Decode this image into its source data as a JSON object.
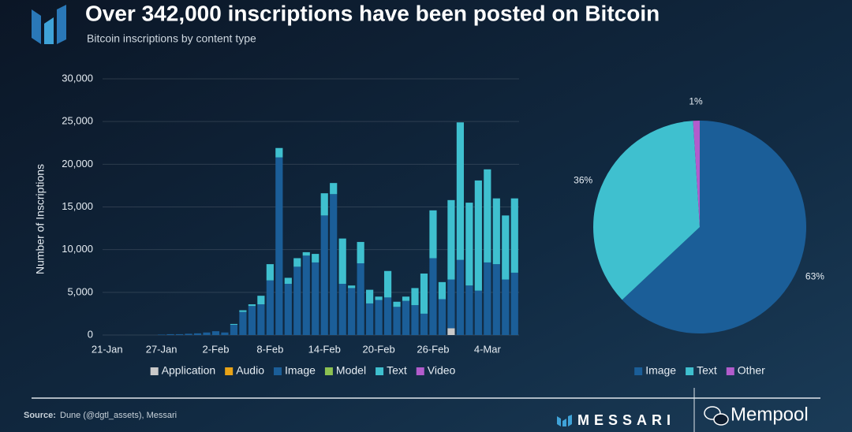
{
  "title": "Over 342,000 inscriptions have been posted on Bitcoin",
  "subtitle": "Bitcoin inscriptions by content type",
  "source_label": "Source:",
  "source": "Dune (@dgtl_assets), Messari",
  "brand": "MESSARI",
  "watermark": "Mempool",
  "chart_data": [
    {
      "type": "bar",
      "stacked": true,
      "y_label": "Number of Inscriptions",
      "categories": [
        "21-Jan",
        null,
        null,
        null,
        null,
        null,
        "27-Jan",
        null,
        null,
        null,
        null,
        null,
        "2-Feb",
        null,
        null,
        null,
        null,
        null,
        "8-Feb",
        null,
        null,
        null,
        null,
        null,
        "14-Feb",
        null,
        null,
        null,
        null,
        null,
        "20-Feb",
        null,
        null,
        null,
        null,
        null,
        "26-Feb",
        null,
        null,
        null,
        null,
        null,
        "4-Mar",
        null,
        null,
        null
      ],
      "series": [
        {
          "name": "Application",
          "color": "#c9c9c9",
          "values": [
            0,
            0,
            0,
            0,
            0,
            0,
            0,
            0,
            0,
            0,
            0,
            0,
            0,
            0,
            0,
            0,
            0,
            0,
            0,
            0,
            0,
            0,
            0,
            0,
            0,
            0,
            0,
            0,
            0,
            0,
            0,
            0,
            0,
            0,
            0,
            0,
            0,
            0,
            800,
            0,
            0,
            0,
            0,
            0,
            0,
            0
          ]
        },
        {
          "name": "Audio",
          "color": "#e8a317",
          "values": [
            0,
            0,
            0,
            0,
            0,
            0,
            0,
            0,
            0,
            0,
            0,
            0,
            0,
            0,
            0,
            0,
            0,
            0,
            0,
            0,
            0,
            0,
            0,
            0,
            0,
            0,
            0,
            0,
            0,
            0,
            0,
            0,
            0,
            0,
            0,
            0,
            0,
            0,
            0,
            0,
            0,
            0,
            0,
            0,
            0,
            0
          ]
        },
        {
          "name": "Image",
          "color": "#1b5e98",
          "values": [
            0,
            0,
            0,
            0,
            0,
            0,
            50,
            100,
            100,
            150,
            200,
            300,
            450,
            300,
            1200,
            2700,
            3400,
            3600,
            6400,
            20800,
            6000,
            8000,
            9300,
            8500,
            14000,
            16500,
            6000,
            5500,
            8400,
            3700,
            4100,
            4400,
            3300,
            4000,
            3500,
            2500,
            9000,
            4200,
            5700,
            8800,
            5800,
            5200,
            8500,
            8300,
            6500,
            7300
          ]
        },
        {
          "name": "Model",
          "color": "#8cc152",
          "values": [
            0,
            0,
            0,
            0,
            0,
            0,
            0,
            0,
            0,
            0,
            0,
            0,
            0,
            0,
            0,
            0,
            0,
            0,
            0,
            0,
            0,
            0,
            0,
            0,
            0,
            0,
            0,
            0,
            0,
            0,
            0,
            0,
            0,
            0,
            0,
            0,
            0,
            0,
            0,
            0,
            0,
            0,
            0,
            0,
            0,
            0
          ]
        },
        {
          "name": "Text",
          "color": "#3fc0cf",
          "values": [
            0,
            0,
            0,
            0,
            0,
            0,
            0,
            0,
            0,
            0,
            0,
            0,
            0,
            0,
            100,
            200,
            200,
            1000,
            1900,
            1100,
            700,
            1000,
            400,
            1000,
            2600,
            1300,
            5300,
            300,
            2500,
            1600,
            400,
            3100,
            600,
            500,
            2000,
            4700,
            5600,
            2000,
            9300,
            16100,
            9700,
            12900,
            10900,
            7700,
            7500,
            8700
          ]
        },
        {
          "name": "Video",
          "color": "#b25ccc",
          "values": [
            0,
            0,
            0,
            0,
            0,
            0,
            0,
            0,
            0,
            0,
            0,
            0,
            0,
            0,
            0,
            0,
            0,
            0,
            0,
            0,
            0,
            0,
            0,
            0,
            0,
            0,
            0,
            0,
            0,
            0,
            0,
            0,
            0,
            0,
            0,
            0,
            0,
            0,
            0,
            0,
            0,
            0,
            0,
            0,
            0,
            0
          ]
        }
      ],
      "ylim": [
        0,
        30000
      ],
      "yticks": [
        0,
        {
          "value": 5000,
          "label": "5,000"
        },
        {
          "value": 10000,
          "label": "10,000"
        },
        {
          "value": 15000,
          "label": "15,000"
        },
        {
          "value": 20000,
          "label": "20,000"
        },
        {
          "value": 25000,
          "label": "25,000"
        },
        {
          "value": 30000,
          "label": "30,000"
        }
      ],
      "grid": true,
      "legend": "bottom"
    },
    {
      "type": "pie",
      "categories": [
        "Image",
        "Text",
        "Other"
      ],
      "values": [
        63,
        36,
        1
      ],
      "value_labels": [
        "63%",
        "36%",
        "1%"
      ],
      "colors": [
        "#1b5e98",
        "#3fc0cf",
        "#b25ccc"
      ],
      "legend": "bottom"
    }
  ]
}
